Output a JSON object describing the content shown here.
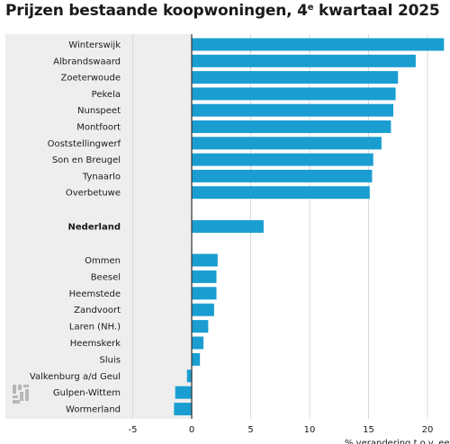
{
  "chart_data": {
    "type": "bar",
    "orientation": "horizontal",
    "title": {
      "main": "Prijzen bestaande koopwoningen, 4",
      "superscript": "e",
      "rest": " kwartaal 2025"
    },
    "xlabel": "% verandering t.o.v. een jaar eerder",
    "xlim": [
      -5,
      22
    ],
    "xticks": [
      "-5",
      "0",
      "5",
      "10",
      "15",
      "20"
    ],
    "grid": true,
    "bar_color": "#1a9ed1",
    "highlight": "Nederland",
    "categories": [
      "Winterswijk",
      "Albrandswaard",
      "Zoeterwoude",
      "Pekela",
      "Nunspeet",
      "Montfoort",
      "Ooststellingwerf",
      "Son en Breugel",
      "Tynaarlo",
      "Overbetuwe",
      "Nederland",
      "Ommen",
      "Beesel",
      "Heemstede",
      "Zandvoort",
      "Laren (NH.)",
      "Heemskerk",
      "Sluis",
      "Valkenburg a/d Geul",
      "Gulpen-Wittem",
      "Wormerland"
    ],
    "values": [
      21.4,
      19.0,
      17.5,
      17.3,
      17.1,
      16.9,
      16.1,
      15.4,
      15.3,
      15.1,
      6.1,
      2.2,
      2.1,
      2.1,
      1.9,
      1.4,
      1.0,
      0.7,
      -0.4,
      -1.4,
      -1.5
    ]
  }
}
